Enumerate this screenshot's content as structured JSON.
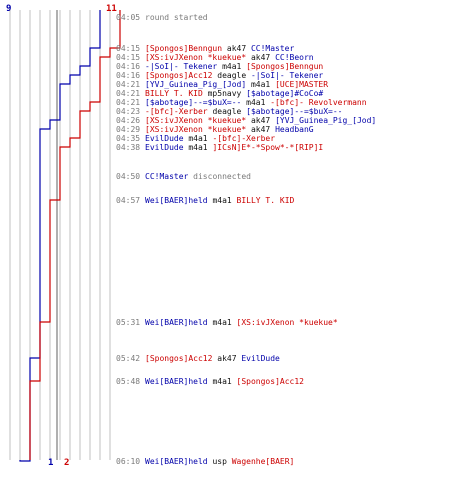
{
  "colors": {
    "blue_team": "#0000aa",
    "red_team": "#cc0000",
    "grid": "#c0c0c0",
    "text_neutral": "#7a7a7a",
    "text_weapon": "#111111"
  },
  "team_counts": {
    "blue_start": "9",
    "red_start": "11",
    "blue_end": "1",
    "red_end": "2"
  },
  "chart_data": {
    "type": "line",
    "series": [
      {
        "team": "blue",
        "values": [
          9,
          9,
          8,
          7,
          6,
          5,
          4,
          3,
          2,
          1
        ]
      },
      {
        "team": "red",
        "values": [
          11,
          11,
          10,
          9,
          8,
          7,
          6,
          5,
          4,
          3,
          2
        ]
      }
    ]
  },
  "events": [
    {
      "time": "04:05",
      "parts": [
        {
          "t": "round started",
          "c": "grey"
        }
      ]
    },
    {
      "time": "04:15",
      "parts": [
        {
          "t": "[Spongos]Benngun",
          "c": "red"
        },
        {
          "t": " ak47 ",
          "c": "black"
        },
        {
          "t": "CC!Master",
          "c": "blue"
        }
      ]
    },
    {
      "time": "04:15",
      "parts": [
        {
          "t": "[XS:ivJXenon *kuekue*",
          "c": "red"
        },
        {
          "t": " ak47 ",
          "c": "black"
        },
        {
          "t": "CC!Beorn",
          "c": "blue"
        }
      ]
    },
    {
      "time": "04:16",
      "parts": [
        {
          "t": "-|SoI|- Tekener",
          "c": "blue"
        },
        {
          "t": " m4a1 ",
          "c": "black"
        },
        {
          "t": "[Spongos]Benngun",
          "c": "red"
        }
      ]
    },
    {
      "time": "04:16",
      "parts": [
        {
          "t": "[Spongos]Acc12",
          "c": "red"
        },
        {
          "t": " deagle ",
          "c": "black"
        },
        {
          "t": "-|SoI|- Tekener",
          "c": "blue"
        }
      ]
    },
    {
      "time": "04:21",
      "parts": [
        {
          "t": "[YVJ_Guinea_Pig_[Jod]",
          "c": "blue"
        },
        {
          "t": " m4a1 ",
          "c": "black"
        },
        {
          "t": "[UCE]MASTER",
          "c": "red"
        }
      ]
    },
    {
      "time": "04:21",
      "parts": [
        {
          "t": "BILLY T. KID",
          "c": "red"
        },
        {
          "t": " mp5navy ",
          "c": "black"
        },
        {
          "t": "[$abotage]#CoCo#",
          "c": "blue"
        }
      ]
    },
    {
      "time": "04:21",
      "parts": [
        {
          "t": "[$abotage]--=$buX=--",
          "c": "blue"
        },
        {
          "t": " m4a1 ",
          "c": "black"
        },
        {
          "t": "-[bfc]- Revolvermann",
          "c": "red"
        }
      ]
    },
    {
      "time": "04:23",
      "parts": [
        {
          "t": "-[bfc]-Xerber",
          "c": "red"
        },
        {
          "t": " deagle ",
          "c": "black"
        },
        {
          "t": "[$abotage]--=$buX=--",
          "c": "blue"
        }
      ]
    },
    {
      "time": "04:26",
      "parts": [
        {
          "t": "[XS:ivJXenon *kuekue*",
          "c": "red"
        },
        {
          "t": " ak47 ",
          "c": "black"
        },
        {
          "t": "[YVJ_Guinea_Pig_[Jod]",
          "c": "blue"
        }
      ]
    },
    {
      "time": "04:29",
      "parts": [
        {
          "t": "[XS:ivJXenon *kuekue*",
          "c": "red"
        },
        {
          "t": " ak47 ",
          "c": "black"
        },
        {
          "t": "HeadbanG",
          "c": "blue"
        }
      ]
    },
    {
      "time": "04:35",
      "parts": [
        {
          "t": "EvilDude",
          "c": "blue"
        },
        {
          "t": " m4a1 ",
          "c": "black"
        },
        {
          "t": "-[bfc]-Xerber",
          "c": "red"
        }
      ]
    },
    {
      "time": "04:38",
      "parts": [
        {
          "t": "EvilDude",
          "c": "blue"
        },
        {
          "t": " m4a1 ",
          "c": "black"
        },
        {
          "t": "]ICsN]E*-*Spow*-*[RIP]I",
          "c": "red"
        }
      ]
    },
    {
      "time": "04:50",
      "parts": [
        {
          "t": "CC!Master",
          "c": "blue"
        },
        {
          "t": " disconnected",
          "c": "grey"
        }
      ]
    },
    {
      "time": "04:57",
      "parts": [
        {
          "t": "Wei[BAER]held",
          "c": "blue"
        },
        {
          "t": " m4a1 ",
          "c": "black"
        },
        {
          "t": "BILLY T. KID",
          "c": "red"
        }
      ]
    },
    {
      "time": "05:31",
      "parts": [
        {
          "t": "Wei[BAER]held",
          "c": "blue"
        },
        {
          "t": " m4a1 ",
          "c": "black"
        },
        {
          "t": "[XS:ivJXenon *kuekue*",
          "c": "red"
        }
      ]
    },
    {
      "time": "05:42",
      "parts": [
        {
          "t": "[Spongos]Acc12",
          "c": "red"
        },
        {
          "t": " ak47 ",
          "c": "black"
        },
        {
          "t": "EvilDude",
          "c": "blue"
        }
      ]
    },
    {
      "time": "05:48",
      "parts": [
        {
          "t": "Wei[BAER]held",
          "c": "blue"
        },
        {
          "t": " m4a1 ",
          "c": "black"
        },
        {
          "t": "[Spongos]Acc12",
          "c": "red"
        }
      ]
    },
    {
      "time": "06:10",
      "parts": [
        {
          "t": "Wei[BAER]held",
          "c": "blue"
        },
        {
          "t": " usp ",
          "c": "black"
        },
        {
          "t": "Wagenhe[BAER]",
          "c": "red"
        }
      ]
    }
  ]
}
